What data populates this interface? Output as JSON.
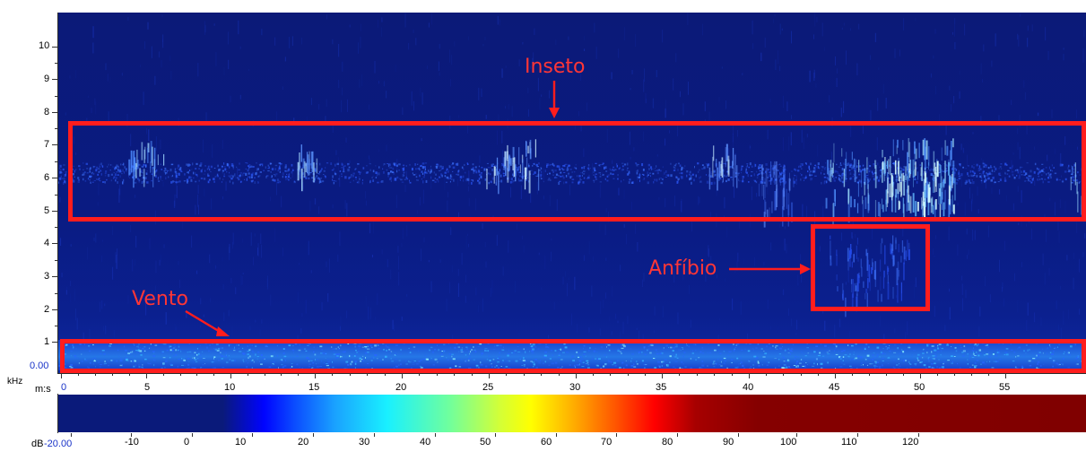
{
  "frequency_axis": {
    "unit_label": "kHz",
    "ticks": [
      "10",
      "9",
      "8",
      "7",
      "6",
      "5",
      "4",
      "3",
      "2",
      "1"
    ],
    "origin_label": "0.00"
  },
  "time_axis": {
    "unit_label": "m:s",
    "ticks": [
      "0",
      "5",
      "10",
      "15",
      "20",
      "25",
      "30",
      "35",
      "40",
      "45",
      "50",
      "55"
    ]
  },
  "colorbar": {
    "unit_label": "dB",
    "first_tick": "-20.00",
    "ticks": [
      "-10",
      "0",
      "10",
      "20",
      "30",
      "40",
      "50",
      "60",
      "70",
      "80",
      "90",
      "100",
      "110",
      "120"
    ]
  },
  "annotations": {
    "insect_label": "Inseto",
    "amphibian_label": "Anfíbio",
    "wind_label": "Vento"
  },
  "colors": {
    "annotation_red": "#ff1d1d",
    "background_blue": "#0b1a7a",
    "tick_blue": "#1832c8"
  },
  "icons": {
    "insect_arrow": "arrow-down-icon",
    "amphibian_arrow": "arrow-right-icon",
    "wind_arrow": "arrow-down-right-icon"
  }
}
